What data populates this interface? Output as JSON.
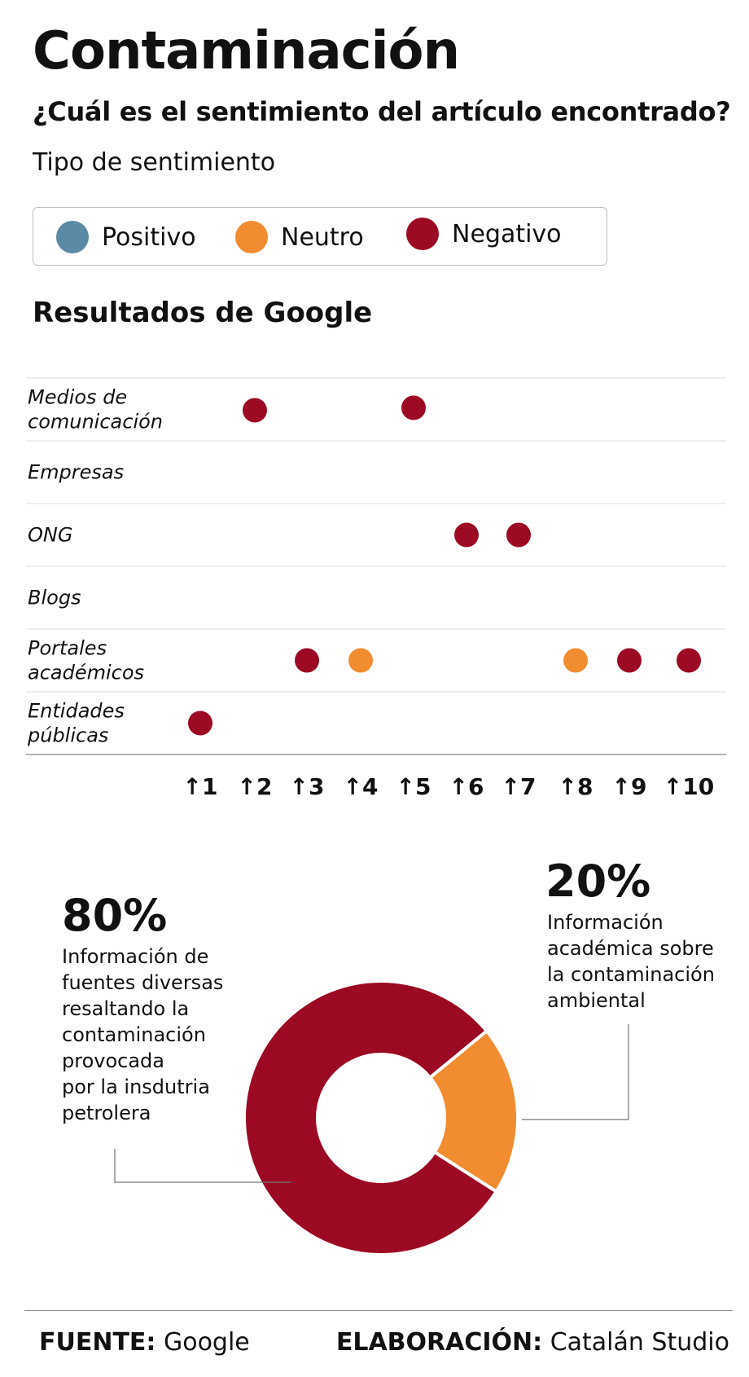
{
  "header": {
    "title": "Contaminación",
    "subtitle": "¿Cuál es el sentimiento del artículo encontrado?",
    "legend_title": "Tipo de sentimiento"
  },
  "legend": [
    {
      "label": "Positivo",
      "color": "#5b8aa6"
    },
    {
      "label": "Neutro",
      "color": "#f28c30"
    },
    {
      "label": "Negativo",
      "color": "#9b0a22"
    }
  ],
  "section_title": "Resultados de Google",
  "chart_data": [
    {
      "type": "scatter",
      "title": "Resultados de Google",
      "categories": [
        "Medios de comunicación",
        "Empresas",
        "ONG",
        "Blogs",
        "Portales académicos",
        "Entidades públicas"
      ],
      "x": [
        "↑1",
        "↑2",
        "↑3",
        "↑4",
        "↑5",
        "↑6",
        "↑7",
        "↑8",
        "↑9",
        "↑10"
      ],
      "points": [
        {
          "category": "Medios de comunicación",
          "rank": 2,
          "sentiment": "Negativo"
        },
        {
          "category": "Medios de comunicación",
          "rank": 5,
          "sentiment": "Negativo"
        },
        {
          "category": "ONG",
          "rank": 6,
          "sentiment": "Negativo"
        },
        {
          "category": "ONG",
          "rank": 7,
          "sentiment": "Negativo"
        },
        {
          "category": "Portales académicos",
          "rank": 3,
          "sentiment": "Negativo"
        },
        {
          "category": "Portales académicos",
          "rank": 4,
          "sentiment": "Neutro"
        },
        {
          "category": "Portales académicos",
          "rank": 8,
          "sentiment": "Neutro"
        },
        {
          "category": "Portales académicos",
          "rank": 9,
          "sentiment": "Negativo"
        },
        {
          "category": "Portales académicos",
          "rank": 10,
          "sentiment": "Negativo"
        },
        {
          "category": "Entidades públicas",
          "rank": 1,
          "sentiment": "Negativo"
        }
      ]
    },
    {
      "type": "pie",
      "slices": [
        {
          "value": 80,
          "label": "80%",
          "description": "Información de fuentes diversas resaltando la contaminación provocada por la insdutria petrolera",
          "color": "#9b0a22"
        },
        {
          "value": 20,
          "label": "20%",
          "description": "Información académica sobre la contaminación ambiental",
          "color": "#f28c30"
        }
      ]
    }
  ],
  "donut_text": {
    "big": {
      "pct": "80%",
      "lines": [
        "Información de",
        "fuentes diversas",
        "resaltando la",
        "contaminación",
        "provocada",
        "por la insdutria",
        "petrolera"
      ]
    },
    "small": {
      "pct": "20%",
      "lines": [
        "Información",
        "académica sobre",
        "la contaminación",
        "ambiental"
      ]
    }
  },
  "footer": {
    "source_label": "FUENTE:",
    "source_value": "Google",
    "credit_label": "ELABORACIÓN:",
    "credit_value": "Catalán Studio"
  }
}
